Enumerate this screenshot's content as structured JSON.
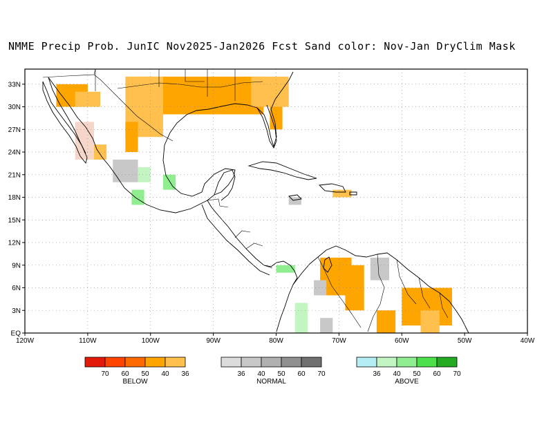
{
  "title": "NMME Precip Prob. JunIC  Nov2025-Jan2026 Fcst  Sand color: Nov-Jan DryClim Mask",
  "map": {
    "lon_range": [
      -120,
      -40
    ],
    "lat_range": [
      0,
      35
    ],
    "lat_ticks": [
      "EQ",
      "3N",
      "6N",
      "9N",
      "12N",
      "15N",
      "18N",
      "21N",
      "24N",
      "27N",
      "30N",
      "33N"
    ],
    "lon_ticks": [
      "120W",
      "110W",
      "100W",
      "90W",
      "80W",
      "70W",
      "60W",
      "50W",
      "40W"
    ],
    "grid": "dotted",
    "colors": {
      "below_36": "#ffc04d",
      "below_40": "#ffa500",
      "normal_36": "#c8c8c8",
      "above_36": "#c3f5c3",
      "above_40": "#90ee90",
      "dry_mask": "#f5d6c8"
    }
  },
  "legends": [
    {
      "name": "BELOW",
      "labels": [
        "70",
        "60",
        "50",
        "40",
        "36"
      ],
      "colors": [
        "#e21a0a",
        "#ff4400",
        "#ff6a00",
        "#ffa500",
        "#ffc04d"
      ]
    },
    {
      "name": "NORMAL",
      "labels": [
        "36",
        "40",
        "50",
        "60",
        "70"
      ],
      "colors": [
        "#dcdcdc",
        "#c8c8c8",
        "#b0b0b0",
        "#909090",
        "#707070"
      ]
    },
    {
      "name": "ABOVE",
      "labels": [
        "36",
        "40",
        "50",
        "60",
        "70"
      ],
      "colors": [
        "#b4eef4",
        "#c3f5c3",
        "#90ee90",
        "#4ce04c",
        "#22aa22"
      ]
    }
  ]
}
